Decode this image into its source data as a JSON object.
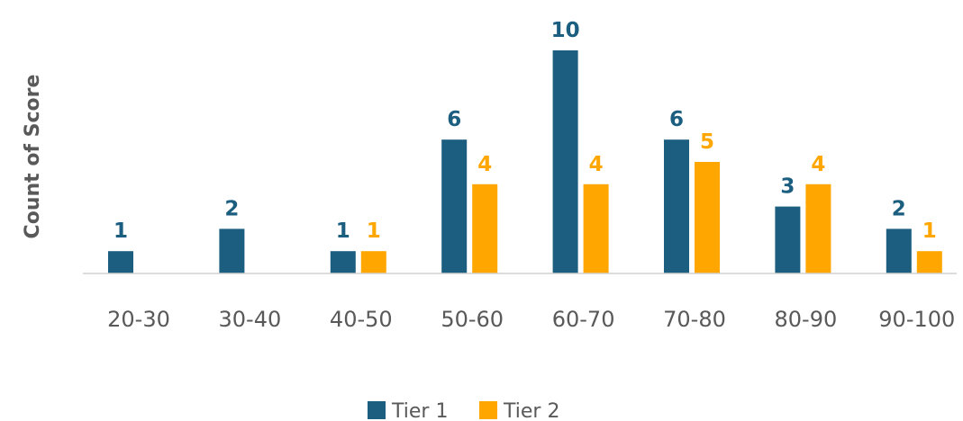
{
  "colors": {
    "tier1": "#1b5e80",
    "tier2": "#ffa600",
    "axis": "#d0d0d0",
    "text": "#595959"
  },
  "chart_data": {
    "type": "bar",
    "ylabel": "Count of Score",
    "xlabel": "",
    "categories": [
      "20-30",
      "30-40",
      "40-50",
      "50-60",
      "60-70",
      "70-80",
      "80-90",
      "90-100"
    ],
    "series": [
      {
        "name": "Tier 1",
        "values": [
          1,
          2,
          1,
          6,
          10,
          6,
          3,
          2
        ]
      },
      {
        "name": "Tier 2",
        "values": [
          null,
          null,
          1,
          4,
          4,
          5,
          4,
          1
        ]
      }
    ],
    "ylim": [
      0,
      10
    ],
    "grid": false,
    "legend": "bottom",
    "data_labels": true
  }
}
